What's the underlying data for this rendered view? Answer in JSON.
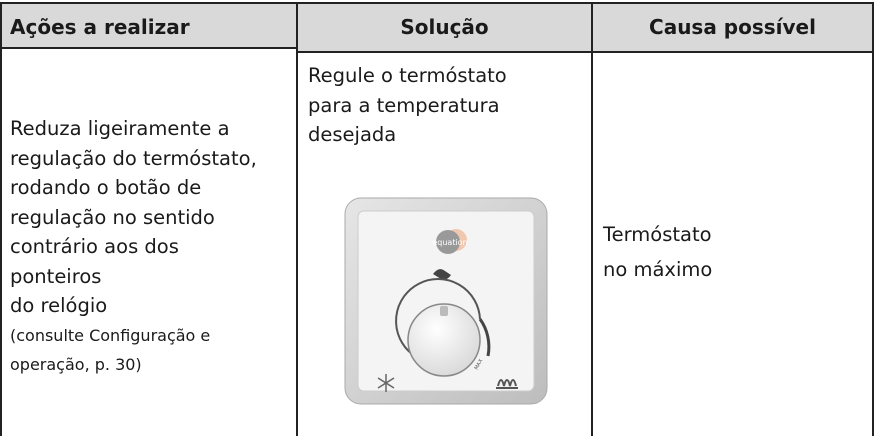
{
  "table": {
    "headers": [
      "Ações a realizar",
      "Solução",
      "Causa possível"
    ],
    "rows": [
      [
        {
          "lines": [
            "Reduza ligeiramente a",
            "regulação do termóstato,",
            "rodando o botão de",
            "regulação no sentido",
            "contrário aos dos",
            "ponteiros",
            "do relógio"
          ],
          "note_lines": [
            "(consulte Configuração e",
            "operação, p. 30)"
          ]
        },
        {
          "lines": [
            "Regule o termóstato",
            "para a temperatura",
            "desejada"
          ]
        },
        {
          "lines": [
            "Termóstato",
            "no máximo"
          ]
        }
      ]
    ]
  },
  "thermostat": {
    "logo": "equation",
    "max": "MAX"
  }
}
